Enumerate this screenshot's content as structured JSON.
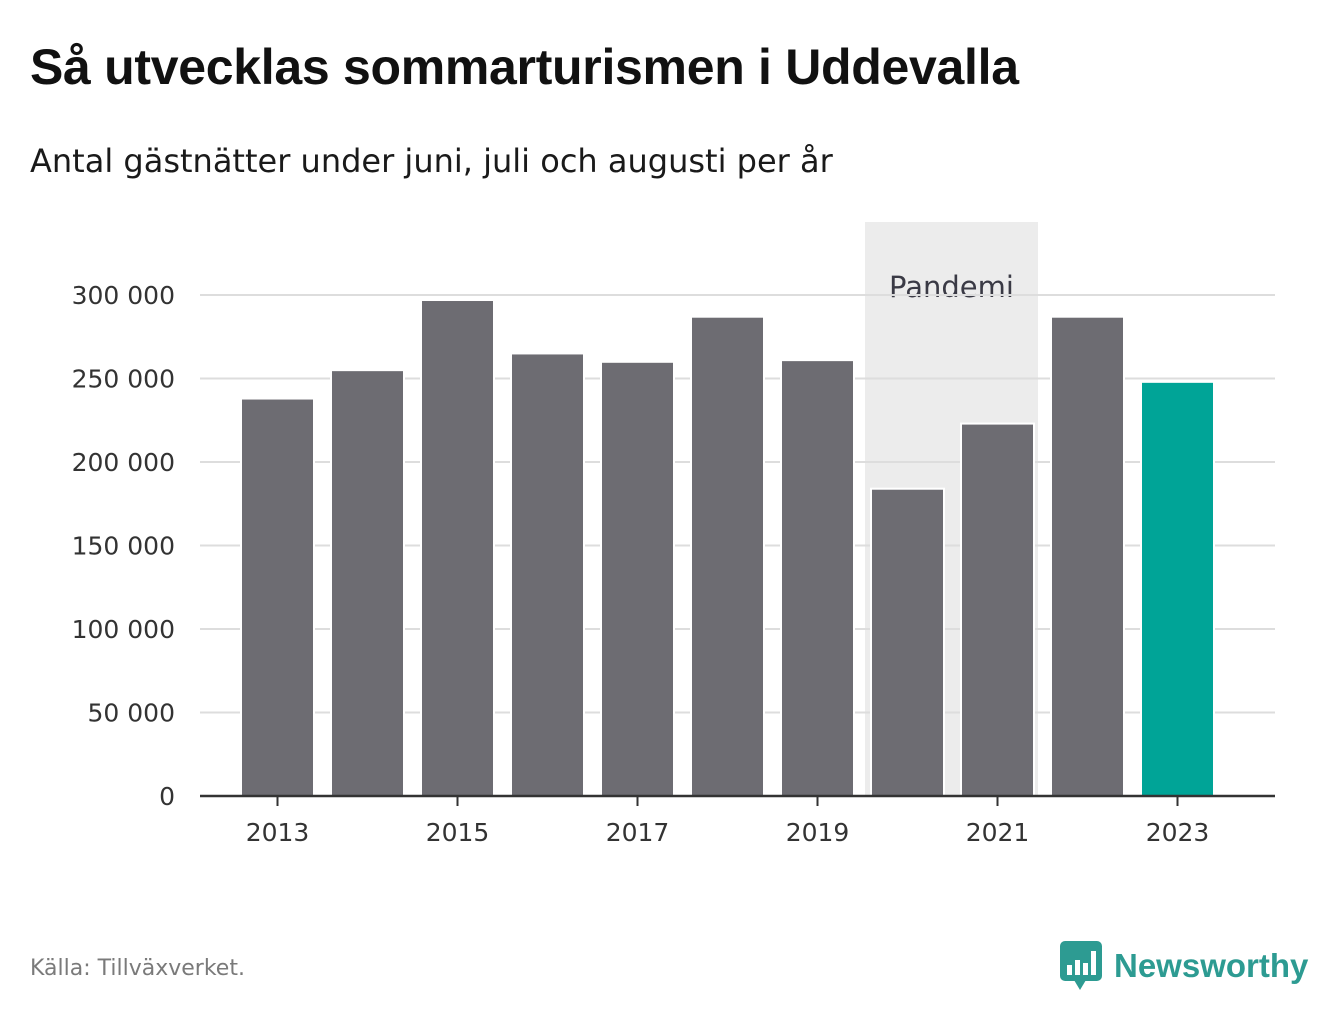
{
  "title": "Så utvecklas sommarturismen i Uddevalla",
  "subtitle": "Antal gästnätter under juni, juli och augusti per år",
  "source": "Källa: Tillväxverket.",
  "brand": {
    "name": "Newsworthy",
    "icon": "newsworthy-logo-icon"
  },
  "colors": {
    "bar": "#6d6c72",
    "highlight": "#00a497",
    "band": "#ececec",
    "grid": "#dddddd",
    "axis": "#333333",
    "brand": "#2d9b92"
  },
  "chart_data": {
    "type": "bar",
    "categories": [
      "2013",
      "2014",
      "2015",
      "2016",
      "2017",
      "2018",
      "2019",
      "2020",
      "2021",
      "2022",
      "2023"
    ],
    "values": [
      238000,
      255000,
      297000,
      265000,
      260000,
      287000,
      261000,
      184000,
      223000,
      287000,
      248000
    ],
    "highlight_category": "2023",
    "title": "Så utvecklas sommarturismen i Uddevalla",
    "subtitle": "Antal gästnätter under juni, juli och augusti per år",
    "x_tick_labels": [
      "2013",
      "2015",
      "2017",
      "2019",
      "2021",
      "2023"
    ],
    "y_tick_labels": [
      "0",
      "50 000",
      "100 000",
      "150 000",
      "200 000",
      "250 000",
      "300 000"
    ],
    "y_ticks": [
      0,
      50000,
      100000,
      150000,
      200000,
      250000,
      300000
    ],
    "ylim": [
      0,
      300000
    ],
    "grid": true,
    "annotation": {
      "label": "Pandemi",
      "from": "2020",
      "to": "2021"
    }
  }
}
